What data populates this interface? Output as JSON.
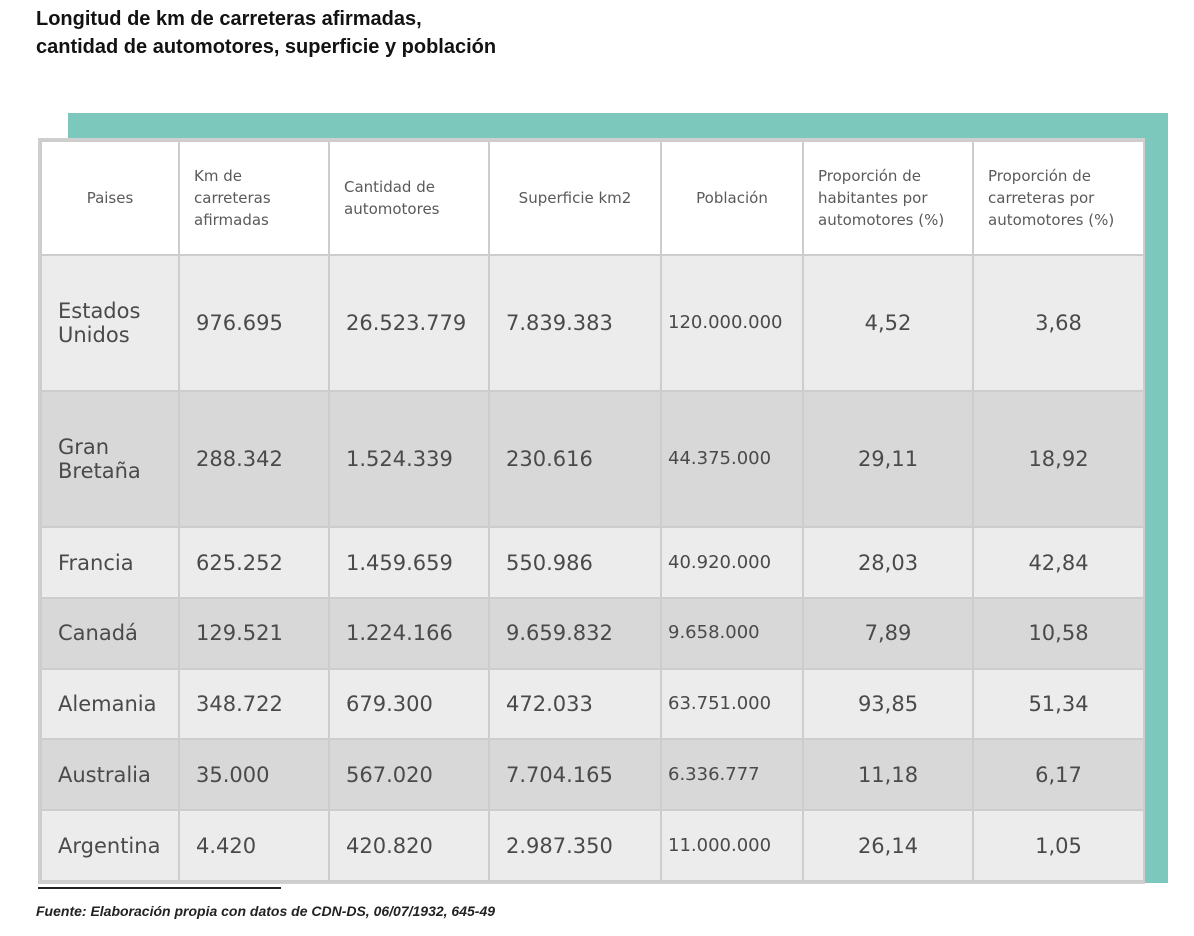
{
  "title": {
    "line1": "Longitud de km de carreteras afirmadas,",
    "line2": "cantidad de automotores, superficie y población"
  },
  "colors": {
    "accent_teal": "#7cc8bd",
    "row_light": "#ececec",
    "row_dark": "#d8d8d8",
    "grid": "#cdcdcd"
  },
  "table": {
    "headers": [
      "Paises",
      "Km de carreteras afirmadas",
      "Cantidad de automotores",
      "Superficie km2",
      "Población",
      "Proporción de habitantes por automotores (%)",
      "Proporción de carreteras por automotores (%)"
    ],
    "rows": [
      [
        "Estados Unidos",
        "976.695",
        "26.523.779",
        "7.839.383",
        "120.000.000",
        "4,52",
        "3,68"
      ],
      [
        "Gran Bretaña",
        "288.342",
        "1.524.339",
        "230.616",
        "44.375.000",
        "29,11",
        "18,92"
      ],
      [
        "Francia",
        "625.252",
        "1.459.659",
        "550.986",
        "40.920.000",
        "28,03",
        "42,84"
      ],
      [
        "Canadá",
        "129.521",
        "1.224.166",
        "9.659.832",
        "9.658.000",
        "7,89",
        "10,58"
      ],
      [
        "Alemania",
        "348.722",
        "679.300",
        "472.033",
        "63.751.000",
        "93,85",
        "51,34"
      ],
      [
        "Australia",
        "35.000",
        "567.020",
        "7.704.165",
        "6.336.777",
        "11,18",
        "6,17"
      ],
      [
        "Argentina",
        "4.420",
        "420.820",
        "2.987.350",
        "11.000.000",
        "26,14",
        "1,05"
      ]
    ]
  },
  "source": "Fuente: Elaboración propia con datos de CDN-DS, 06/07/1932, 645-49"
}
